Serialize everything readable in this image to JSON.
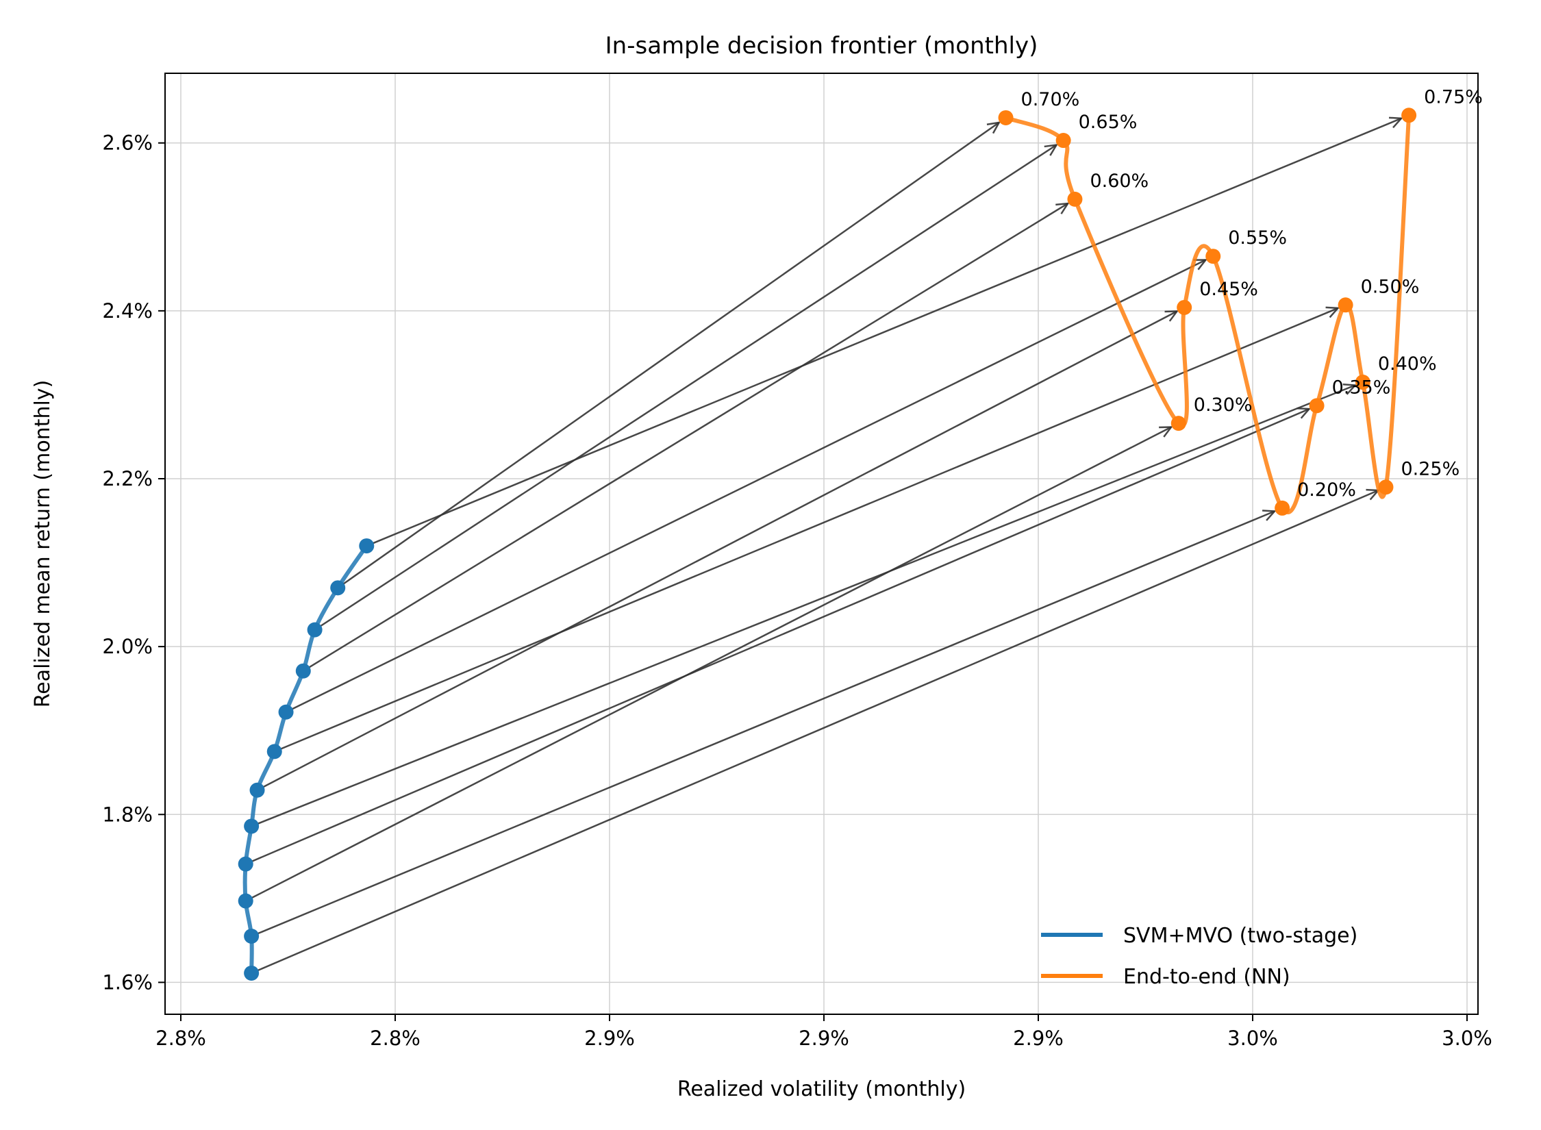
{
  "chart_data": {
    "type": "line",
    "title": "In-sample decision frontier (monthly)",
    "xlabel": "Realized volatility (monthly)",
    "ylabel": "Realized mean return (monthly)",
    "xlim": [
      2.775,
      3.003
    ],
    "ylim": [
      1.562,
      2.683
    ],
    "x_ticks": [
      2.78,
      2.83,
      2.88,
      2.93,
      2.98,
      3.03
    ],
    "x_tick_labels": [
      "2.8%",
      "2.8%",
      "2.9%",
      "2.9%",
      "2.9%",
      "3.0%",
      "3.0%"
    ],
    "x_tick_positions": [
      2.778,
      2.828,
      2.878,
      2.928,
      2.978,
      3.028,
      3.078
    ],
    "y_ticks": [
      1.6,
      1.8,
      2.0,
      2.2,
      2.4,
      2.6
    ],
    "y_tick_labels": [
      "1.6%",
      "1.8%",
      "2.0%",
      "2.2%",
      "2.4%",
      "2.6%"
    ],
    "grid": true,
    "legend_position": "lower-right",
    "colors": {
      "svm": "#1f77b4",
      "e2e": "#ff7f0e",
      "arrow": "#333333"
    },
    "series": [
      {
        "name": "SVM+MVO (two-stage)",
        "color": "#1f77b4",
        "points": [
          {
            "x": 2.79,
            "y": 1.611
          },
          {
            "x": 2.79,
            "y": 1.655
          },
          {
            "x": 2.789,
            "y": 1.697
          },
          {
            "x": 2.789,
            "y": 1.741
          },
          {
            "x": 2.79,
            "y": 1.786
          },
          {
            "x": 2.791,
            "y": 1.829
          },
          {
            "x": 2.794,
            "y": 1.875
          },
          {
            "x": 2.796,
            "y": 1.922
          },
          {
            "x": 2.799,
            "y": 1.971
          },
          {
            "x": 2.801,
            "y": 2.02
          },
          {
            "x": 2.805,
            "y": 2.07
          },
          {
            "x": 2.81,
            "y": 2.12
          }
        ]
      },
      {
        "name": "End-to-end (NN)",
        "color": "#ff7f0e",
        "points": [
          {
            "x": 2.987,
            "y": 2.19,
            "label": "0.25%"
          },
          {
            "x": 2.969,
            "y": 2.165,
            "label": "0.20%"
          },
          {
            "x": 2.975,
            "y": 2.287,
            "label": "0.35%"
          },
          {
            "x": 2.98,
            "y": 2.407,
            "label": "0.50%"
          },
          {
            "x": 2.983,
            "y": 2.315,
            "label": "0.40%"
          },
          {
            "x": 2.987,
            "y": 2.19
          },
          {
            "x": 2.991,
            "y": 2.633,
            "label": "0.75%"
          }
        ]
      }
    ],
    "e2e_curve_order": [
      {
        "x": 2.921,
        "y": 2.63,
        "label": "0.70%"
      },
      {
        "x": 2.931,
        "y": 2.603,
        "label": "0.65%"
      },
      {
        "x": 2.933,
        "y": 2.533,
        "label": "0.60%"
      },
      {
        "x": 2.951,
        "y": 2.266,
        "label": "0.30%"
      },
      {
        "x": 2.952,
        "y": 2.404,
        "label": "0.45%"
      },
      {
        "x": 2.957,
        "y": 2.465,
        "label": "0.55%"
      },
      {
        "x": 2.969,
        "y": 2.165,
        "label": "0.20%"
      },
      {
        "x": 2.975,
        "y": 2.287,
        "label": "0.35%"
      },
      {
        "x": 2.98,
        "y": 2.407,
        "label": "0.50%"
      },
      {
        "x": 2.983,
        "y": 2.315,
        "label": "0.40%"
      },
      {
        "x": 2.987,
        "y": 2.19,
        "label": "0.25%"
      },
      {
        "x": 2.991,
        "y": 2.633,
        "label": "0.75%"
      }
    ],
    "arrows": [
      {
        "from": {
          "x": 2.79,
          "y": 1.611
        },
        "to": {
          "x": 2.987,
          "y": 2.19
        }
      },
      {
        "from": {
          "x": 2.79,
          "y": 1.655
        },
        "to": {
          "x": 2.969,
          "y": 2.165
        }
      },
      {
        "from": {
          "x": 2.789,
          "y": 1.697
        },
        "to": {
          "x": 2.951,
          "y": 2.266
        }
      },
      {
        "from": {
          "x": 2.789,
          "y": 1.741
        },
        "to": {
          "x": 2.975,
          "y": 2.287
        }
      },
      {
        "from": {
          "x": 2.79,
          "y": 1.786
        },
        "to": {
          "x": 2.983,
          "y": 2.315
        }
      },
      {
        "from": {
          "x": 2.791,
          "y": 1.829
        },
        "to": {
          "x": 2.952,
          "y": 2.404
        }
      },
      {
        "from": {
          "x": 2.794,
          "y": 1.875
        },
        "to": {
          "x": 2.98,
          "y": 2.407
        }
      },
      {
        "from": {
          "x": 2.796,
          "y": 1.922
        },
        "to": {
          "x": 2.957,
          "y": 2.465
        }
      },
      {
        "from": {
          "x": 2.799,
          "y": 1.971
        },
        "to": {
          "x": 2.933,
          "y": 2.533
        }
      },
      {
        "from": {
          "x": 2.801,
          "y": 2.02
        },
        "to": {
          "x": 2.931,
          "y": 2.603
        }
      },
      {
        "from": {
          "x": 2.805,
          "y": 2.07
        },
        "to": {
          "x": 2.921,
          "y": 2.63
        }
      },
      {
        "from": {
          "x": 2.81,
          "y": 2.12
        },
        "to": {
          "x": 2.991,
          "y": 2.633
        }
      }
    ]
  }
}
